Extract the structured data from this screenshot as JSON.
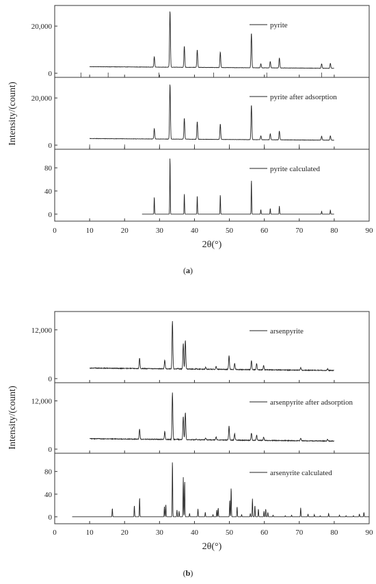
{
  "figure": {
    "colors": {
      "line": "#222222",
      "axis": "#333333"
    }
  },
  "chart_data": [
    {
      "id": "a",
      "type": "line",
      "caption_prefix": "(",
      "caption_letter": "a",
      "caption_suffix": ")",
      "xlabel": "2θ(°)",
      "ylabel": "Intensity/(count)",
      "xlim": [
        0,
        90
      ],
      "xticks": [
        0,
        10,
        20,
        30,
        40,
        50,
        60,
        70,
        80,
        90
      ],
      "grid": false,
      "legend_position": "top-right",
      "panels": [
        {
          "name": "pyrite",
          "ylim": [
            0,
            27000
          ],
          "yticks": [
            0,
            20000
          ],
          "ytick_labels": [
            "0",
            "20,000"
          ],
          "x_range": [
            10,
            80
          ],
          "baseline": [
            2800,
            2100
          ],
          "noise": 60,
          "reference_marks": [
            7.5,
            15.3,
            29.8,
            45.5,
            60.7,
            76.4
          ],
          "peaks": [
            [
              28.5,
              7000
            ],
            [
              33.0,
              26500
            ],
            [
              37.1,
              11500
            ],
            [
              40.8,
              10000
            ],
            [
              47.4,
              9000
            ],
            [
              56.3,
              17000
            ],
            [
              59.0,
              4000
            ],
            [
              61.7,
              5000
            ],
            [
              64.3,
              6500
            ],
            [
              76.4,
              4000
            ],
            [
              78.9,
              4200
            ],
            [
              81.5,
              0
            ]
          ]
        },
        {
          "name": "pyrite after adsorption",
          "ylim": [
            0,
            27000
          ],
          "yticks": [
            0,
            20000
          ],
          "ytick_labels": [
            "0",
            "20,000"
          ],
          "x_range": [
            10,
            80
          ],
          "baseline": [
            2800,
            2100
          ],
          "noise": 60,
          "reference_marks": [
            10.0,
            20.0,
            30.0,
            40.0,
            50.0,
            60.0,
            70.0
          ],
          "peaks": [
            [
              28.5,
              7000
            ],
            [
              33.0,
              26000
            ],
            [
              37.1,
              11500
            ],
            [
              40.8,
              10000
            ],
            [
              47.4,
              9000
            ],
            [
              56.3,
              17000
            ],
            [
              59.0,
              4000
            ],
            [
              61.7,
              4800
            ],
            [
              64.3,
              6000
            ],
            [
              76.4,
              3800
            ],
            [
              78.9,
              4000
            ]
          ]
        },
        {
          "name": "pyrite calculated",
          "ylim": [
            -5,
            105
          ],
          "yticks": [
            0,
            40,
            80
          ],
          "ytick_labels": [
            "0",
            "40",
            "80"
          ],
          "x_range": [
            25,
            80
          ],
          "baseline": [
            0,
            0
          ],
          "noise": 0,
          "reference_marks": [],
          "peaks": [
            [
              28.5,
              30
            ],
            [
              33.0,
              100
            ],
            [
              37.1,
              36
            ],
            [
              40.8,
              32
            ],
            [
              47.4,
              34
            ],
            [
              56.3,
              60
            ],
            [
              59.0,
              8
            ],
            [
              61.7,
              10
            ],
            [
              64.3,
              14
            ],
            [
              76.4,
              5
            ],
            [
              78.9,
              7
            ]
          ]
        }
      ]
    },
    {
      "id": "b",
      "type": "line",
      "caption_prefix": "(",
      "caption_letter": "b",
      "caption_suffix": ")",
      "xlabel": "2θ(°)",
      "ylabel": "Intensity/(count)",
      "xlim": [
        0,
        90
      ],
      "xticks": [
        0,
        10,
        20,
        30,
        40,
        50,
        60,
        70,
        80,
        90
      ],
      "grid": false,
      "legend_position": "top-right",
      "panels": [
        {
          "name": "arsenpyrite",
          "ylim": [
            0,
            15500
          ],
          "yticks": [
            0,
            12000
          ],
          "ytick_labels": [
            "0",
            "12,000"
          ],
          "x_range": [
            10,
            80
          ],
          "baseline": [
            2600,
            2000
          ],
          "noise": 90,
          "reference_marks": [],
          "peaks": [
            [
              24.3,
              5000
            ],
            [
              31.5,
              4600
            ],
            [
              33.7,
              14200
            ],
            [
              35.2,
              2500
            ],
            [
              36.8,
              8700
            ],
            [
              37.4,
              9500
            ],
            [
              40.5,
              2500
            ],
            [
              43.2,
              2800
            ],
            [
              46.2,
              3000
            ],
            [
              49.9,
              5700
            ],
            [
              51.5,
              3800
            ],
            [
              56.3,
              4400
            ],
            [
              57.8,
              3700
            ],
            [
              59.8,
              3200
            ],
            [
              70.4,
              2700
            ],
            [
              78.1,
              2400
            ]
          ]
        },
        {
          "name": "arsenpyrite after adsorption",
          "ylim": [
            0,
            15500
          ],
          "yticks": [
            0,
            12000
          ],
          "ytick_labels": [
            "0",
            "12,000"
          ],
          "x_range": [
            10,
            80
          ],
          "baseline": [
            2600,
            2000
          ],
          "noise": 90,
          "reference_marks": [],
          "peaks": [
            [
              24.3,
              5000
            ],
            [
              31.5,
              4400
            ],
            [
              33.7,
              14000
            ],
            [
              35.2,
              2500
            ],
            [
              36.8,
              8200
            ],
            [
              37.4,
              9200
            ],
            [
              40.5,
              2500
            ],
            [
              43.2,
              2800
            ],
            [
              46.2,
              3000
            ],
            [
              49.9,
              5700
            ],
            [
              51.5,
              3800
            ],
            [
              56.3,
              4000
            ],
            [
              57.8,
              3500
            ],
            [
              59.8,
              3000
            ],
            [
              70.4,
              2700
            ],
            [
              78.1,
              2400
            ]
          ]
        },
        {
          "name": "arsenyrite calculated",
          "ylim": [
            -5,
            105
          ],
          "yticks": [
            0,
            40,
            80
          ],
          "ytick_labels": [
            "0",
            "40",
            "80"
          ],
          "x_range": [
            5,
            90
          ],
          "baseline": [
            0,
            0
          ],
          "noise": 0,
          "reference_marks": [],
          "peaks": [
            [
              16.5,
              15
            ],
            [
              22.8,
              20
            ],
            [
              24.3,
              34
            ],
            [
              31.4,
              18
            ],
            [
              31.8,
              22
            ],
            [
              33.7,
              100
            ],
            [
              35.0,
              12
            ],
            [
              35.6,
              10
            ],
            [
              36.8,
              70
            ],
            [
              37.2,
              64
            ],
            [
              38.6,
              6
            ],
            [
              41.0,
              14
            ],
            [
              43.1,
              8
            ],
            [
              45.3,
              4
            ],
            [
              46.4,
              12
            ],
            [
              46.8,
              16
            ],
            [
              50.1,
              30
            ],
            [
              50.5,
              52
            ],
            [
              52.2,
              18
            ],
            [
              53.5,
              4
            ],
            [
              56.0,
              6
            ],
            [
              56.6,
              32
            ],
            [
              57.3,
              20
            ],
            [
              58.3,
              14
            ],
            [
              59.9,
              10
            ],
            [
              60.4,
              14
            ],
            [
              61.0,
              8
            ],
            [
              62.5,
              3
            ],
            [
              66.0,
              2
            ],
            [
              67.8,
              3
            ],
            [
              70.4,
              16
            ],
            [
              72.5,
              5
            ],
            [
              74.3,
              4
            ],
            [
              76.0,
              2
            ],
            [
              78.4,
              6
            ],
            [
              81.5,
              3
            ],
            [
              83.4,
              2
            ],
            [
              85.5,
              2
            ],
            [
              87.2,
              5
            ],
            [
              88.5,
              8
            ]
          ]
        }
      ]
    }
  ]
}
